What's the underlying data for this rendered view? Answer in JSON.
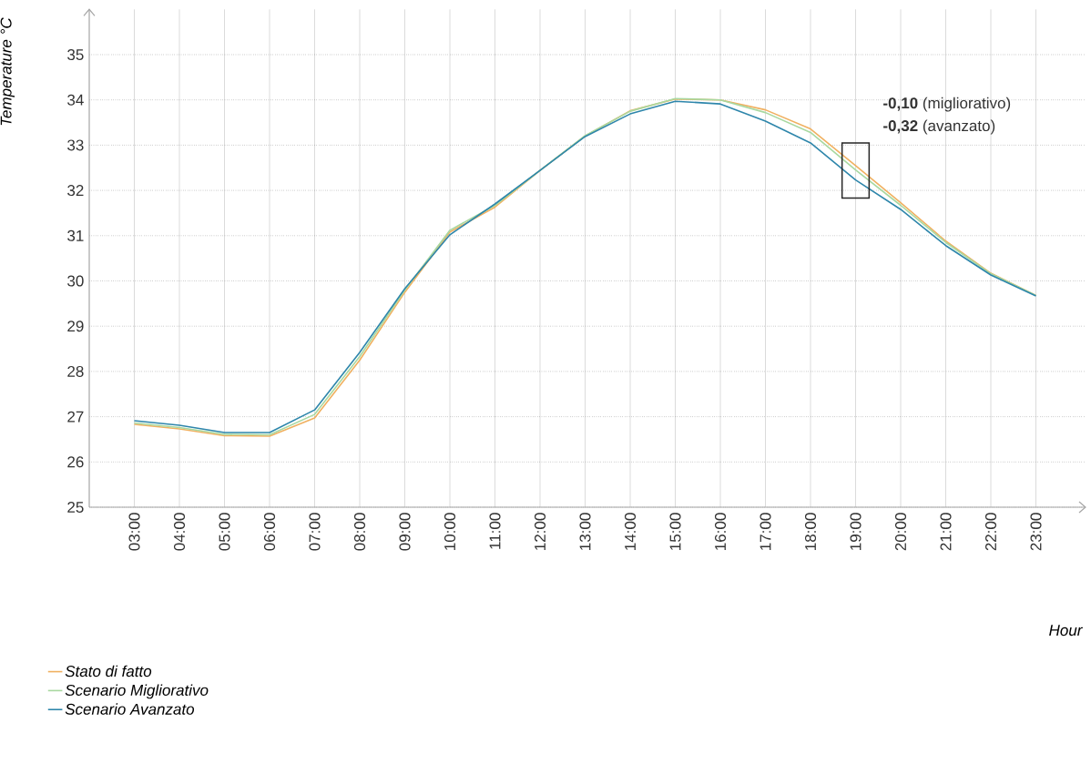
{
  "chart_data": {
    "type": "line",
    "xlabel": "Hour",
    "ylabel": "Temperature °C",
    "categories": [
      "03:00",
      "04:00",
      "05:00",
      "06:00",
      "07:00",
      "08:00",
      "09:00",
      "10:00",
      "11:00",
      "12:00",
      "13:00",
      "14:00",
      "15:00",
      "16:00",
      "17:00",
      "18:00",
      "19:00",
      "20:00",
      "21:00",
      "22:00",
      "23:00"
    ],
    "series": [
      {
        "name": "Stato di fatto",
        "color": "#f0b060",
        "values": [
          26.83,
          26.73,
          26.58,
          26.57,
          26.97,
          28.25,
          29.75,
          31.08,
          31.63,
          32.44,
          33.2,
          33.76,
          34.02,
          34.0,
          33.78,
          33.36,
          32.55,
          31.73,
          30.88,
          30.17,
          29.68
        ]
      },
      {
        "name": "Scenario Migliorativo",
        "color": "#a8d8a0",
        "values": [
          26.86,
          26.76,
          26.61,
          26.6,
          27.05,
          28.33,
          29.8,
          31.12,
          31.67,
          32.44,
          33.21,
          33.75,
          34.03,
          34.0,
          33.72,
          33.28,
          32.45,
          31.67,
          30.85,
          30.16,
          29.68
        ]
      },
      {
        "name": "Scenario Avanzato",
        "color": "#2e86ab",
        "values": [
          26.91,
          26.81,
          26.65,
          26.65,
          27.15,
          28.42,
          29.83,
          31.02,
          31.7,
          32.44,
          33.19,
          33.69,
          33.97,
          33.91,
          33.53,
          33.05,
          32.23,
          31.58,
          30.78,
          30.13,
          29.67
        ]
      }
    ],
    "ylim": [
      25,
      36
    ],
    "yticks": [
      25,
      26,
      27,
      28,
      29,
      30,
      31,
      32,
      33,
      34,
      35
    ],
    "grid": true,
    "legend": "bottom left",
    "marker": "none",
    "line_style": "solid",
    "annotations": [
      "**-0,10** (migliorativo)",
      "**-0,32** (avanzato)"
    ]
  }
}
